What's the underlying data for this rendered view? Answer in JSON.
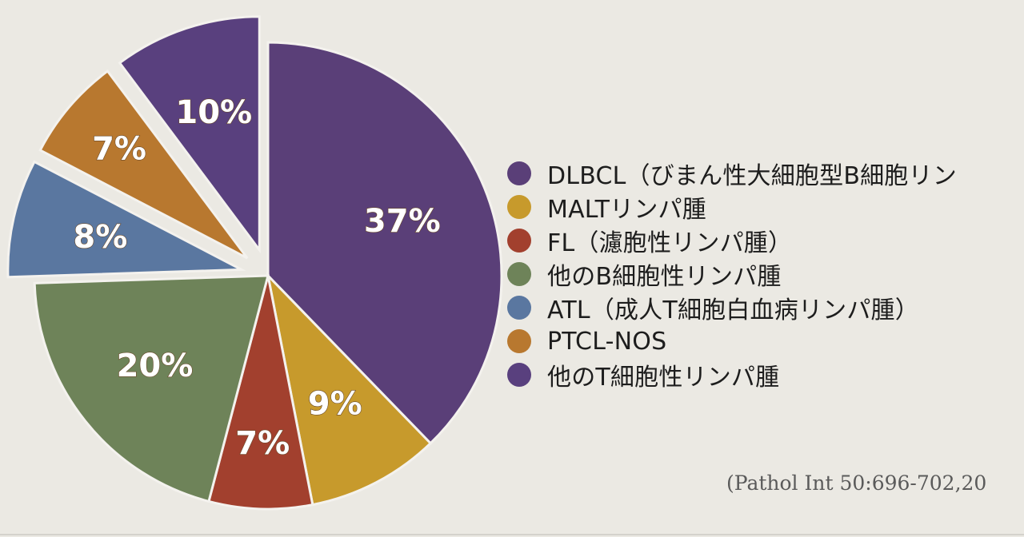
{
  "chart_data": {
    "type": "pie",
    "slices": [
      {
        "label": "DLBCL（びまん性大細胞型B細胞リン",
        "value": 37,
        "display": "37%",
        "color": "#5a3f78",
        "exploded": false
      },
      {
        "label": "MALTリンパ腫",
        "value": 9,
        "display": "9%",
        "color": "#c79a2c",
        "exploded": false
      },
      {
        "label": "FL（濾胞性リンパ腫）",
        "value": 7,
        "display": "7%",
        "color": "#a2402e",
        "exploded": false
      },
      {
        "label": "他のB細胞性リンパ腫",
        "value": 20,
        "display": "20%",
        "color": "#6e8359",
        "exploded": false
      },
      {
        "label": "ATL（成人T細胞白血病リンパ腫）",
        "value": 8,
        "display": "8%",
        "color": "#5a77a0",
        "exploded": true
      },
      {
        "label": "PTCL-NOS",
        "value": 7,
        "display": "7%",
        "color": "#b8782f",
        "exploded": true
      },
      {
        "label": "他のT細胞性リンパ腫",
        "value": 10,
        "display": "10%",
        "color": "#59407e",
        "exploded": true
      }
    ],
    "start": "12 o'clock",
    "direction": "clockwise",
    "legend_position": "right"
  },
  "citation": "(Pathol Int 50:696-702,20"
}
